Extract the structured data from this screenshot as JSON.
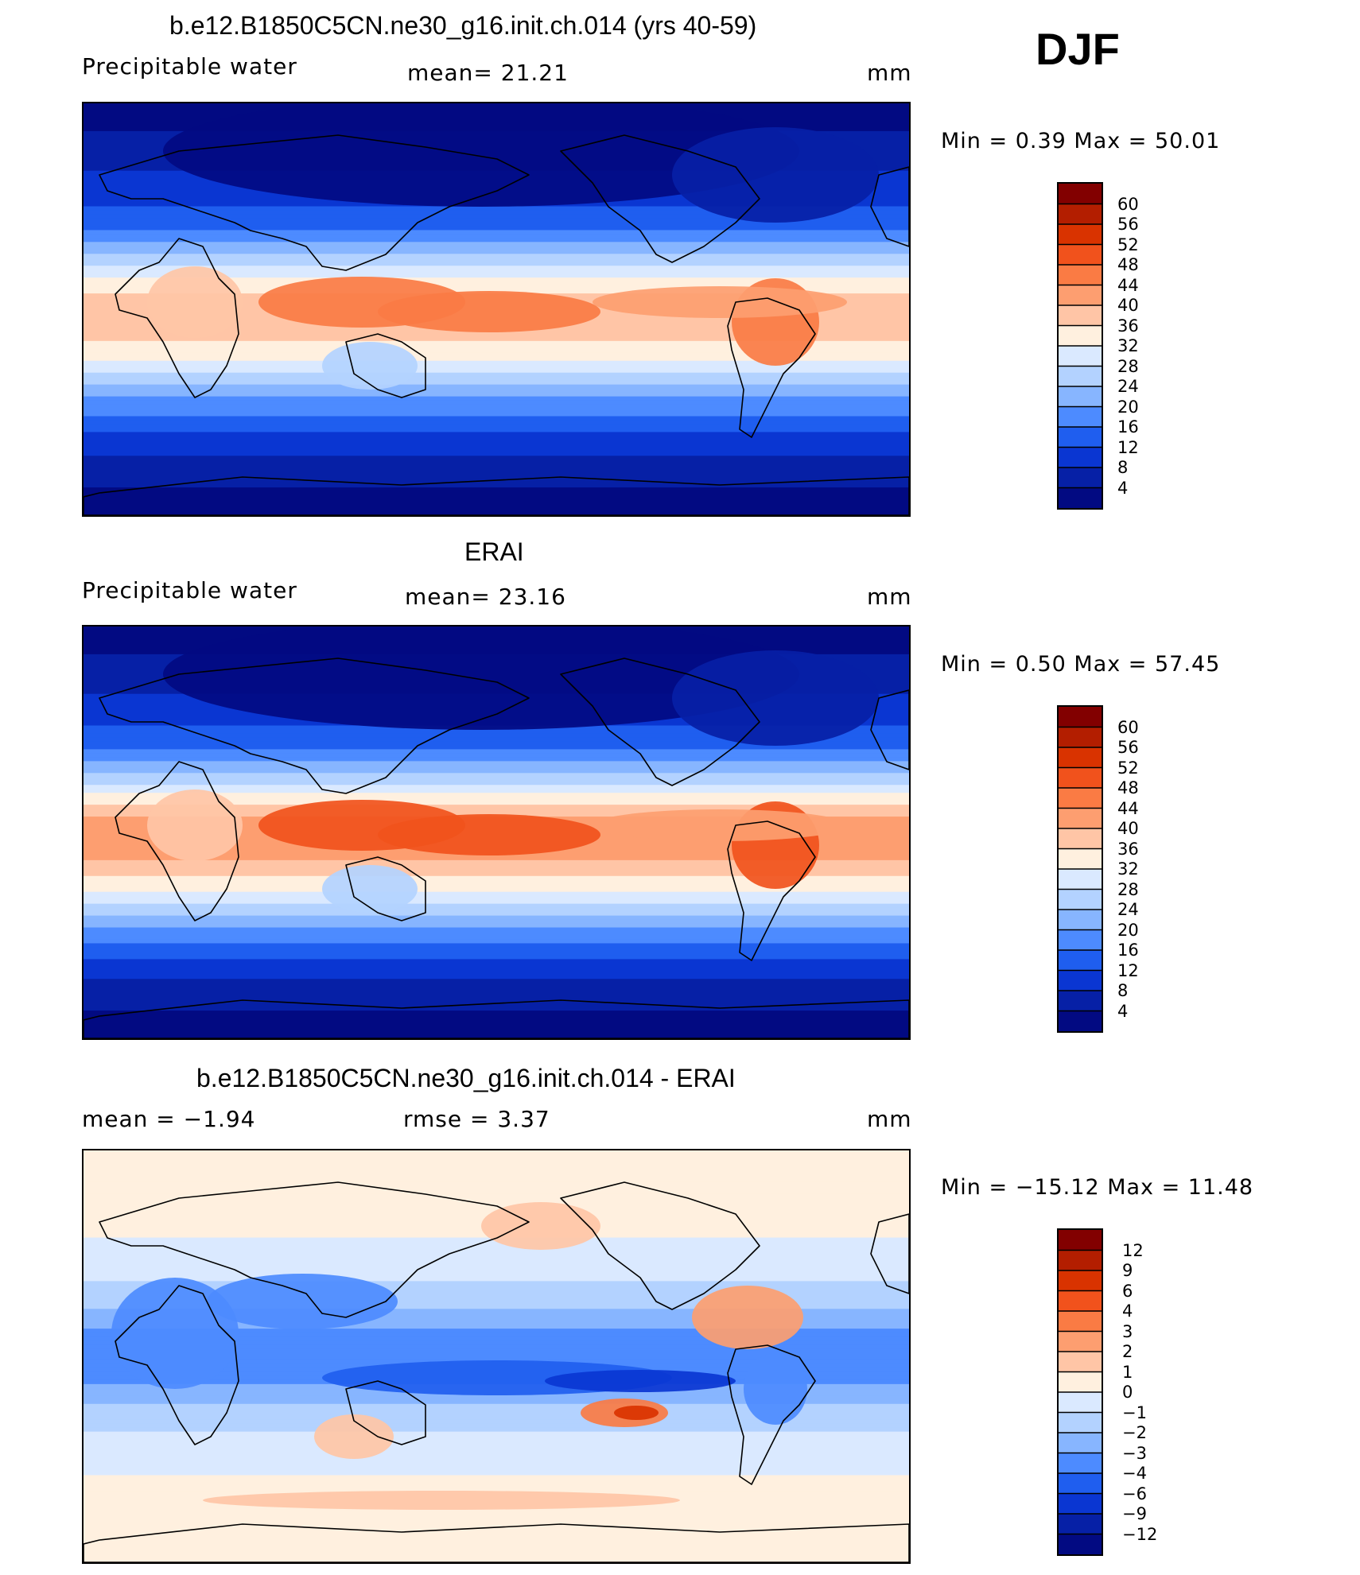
{
  "season": "DJF",
  "panels": [
    {
      "title": "b.e12.B1850C5CN.ne30_g16.init.ch.014 (yrs 40-59)",
      "left_label": "Precipitable  water",
      "center_label": "mean=   21.21",
      "unit": "mm",
      "stats": "Min  =     0.39  Max  =    50.01"
    },
    {
      "title": "ERAI",
      "left_label": "Precipitable  water",
      "center_label": "mean=   23.16",
      "unit": "mm",
      "stats": "Min  =     0.50  Max  =    57.45"
    },
    {
      "title": "b.e12.B1850C5CN.ne30_g16.init.ch.014 - ERAI",
      "left_label": "mean  =    −1.94",
      "center_label": "rmse  =     3.37",
      "unit": "mm",
      "stats": "Min  =  −15.12  Max  =    11.48"
    }
  ],
  "chart_data": [
    {
      "type": "heatmap",
      "title": "b.e12.B1850C5CN.ne30_g16.init.ch.014 (yrs 40-59)",
      "variable": "Precipitable water",
      "units": "mm",
      "mean": 21.21,
      "min": 0.39,
      "max": 50.01,
      "colorbar_levels": [
        "60",
        "56",
        "52",
        "48",
        "44",
        "40",
        "36",
        "32",
        "28",
        "24",
        "20",
        "16",
        "12",
        "8",
        "4"
      ],
      "colorbar_colors": [
        "#820000",
        "#b31e00",
        "#d93300",
        "#f1521c",
        "#fa7b44",
        "#fd9e70",
        "#ffc5a6",
        "#fff0df",
        "#dae9ff",
        "#b3d2ff",
        "#87b5ff",
        "#4d8bff",
        "#1f5eef",
        "#0a36d2",
        "#0620a6",
        "#020a82"
      ],
      "zonal_mean_pw": [
        2,
        4,
        7,
        10,
        14,
        22,
        33,
        40,
        37,
        30,
        20,
        13,
        8,
        4,
        2
      ]
    },
    {
      "type": "heatmap",
      "title": "ERAI",
      "variable": "Precipitable water",
      "units": "mm",
      "mean": 23.16,
      "min": 0.5,
      "max": 57.45,
      "colorbar_levels": [
        "60",
        "56",
        "52",
        "48",
        "44",
        "40",
        "36",
        "32",
        "28",
        "24",
        "20",
        "16",
        "12",
        "8",
        "4"
      ],
      "colorbar_colors": [
        "#820000",
        "#b31e00",
        "#d93300",
        "#f1521c",
        "#fa7b44",
        "#fd9e70",
        "#ffc5a6",
        "#fff0df",
        "#dae9ff",
        "#b3d2ff",
        "#87b5ff",
        "#4d8bff",
        "#1f5eef",
        "#0a36d2",
        "#0620a6",
        "#020a82"
      ],
      "zonal_mean_pw": [
        2,
        4,
        7,
        10,
        15,
        24,
        36,
        44,
        40,
        32,
        22,
        14,
        8,
        4,
        2
      ]
    },
    {
      "type": "heatmap",
      "title": "b.e12.B1850C5CN.ne30_g16.init.ch.014 - ERAI",
      "units": "mm",
      "mean": -1.94,
      "rmse": 3.37,
      "min": -15.12,
      "max": 11.48,
      "colorbar_levels": [
        "12",
        "9",
        "6",
        "4",
        "3",
        "2",
        "1",
        "0",
        "−1",
        "−2",
        "−3",
        "−4",
        "−6",
        "−9",
        "−12"
      ],
      "colorbar_colors": [
        "#820000",
        "#b31e00",
        "#d93300",
        "#f1521c",
        "#fa7b44",
        "#fd9e70",
        "#ffc5a6",
        "#fff0df",
        "#dae9ff",
        "#b3d2ff",
        "#87b5ff",
        "#4d8bff",
        "#1f5eef",
        "#0a36d2",
        "#0620a6",
        "#020a82"
      ],
      "zonal_mean_diff": [
        0,
        0,
        0.5,
        0,
        -0.5,
        -1.5,
        -3,
        -4,
        -3,
        -1.5,
        -0.5,
        0,
        0.5,
        0,
        0
      ]
    }
  ]
}
